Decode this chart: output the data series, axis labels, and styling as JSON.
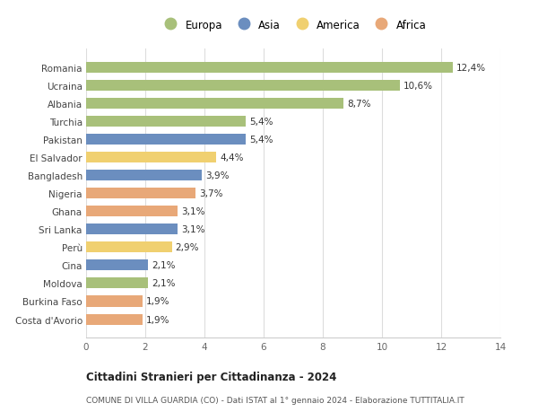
{
  "countries": [
    "Romania",
    "Ucraina",
    "Albania",
    "Turchia",
    "Pakistan",
    "El Salvador",
    "Bangladesh",
    "Nigeria",
    "Ghana",
    "Sri Lanka",
    "Perù",
    "Cina",
    "Moldova",
    "Burkina Faso",
    "Costa d'Avorio"
  ],
  "values": [
    12.4,
    10.6,
    8.7,
    5.4,
    5.4,
    4.4,
    3.9,
    3.7,
    3.1,
    3.1,
    2.9,
    2.1,
    2.1,
    1.9,
    1.9
  ],
  "labels": [
    "12,4%",
    "10,6%",
    "8,7%",
    "5,4%",
    "5,4%",
    "4,4%",
    "3,9%",
    "3,7%",
    "3,1%",
    "3,1%",
    "2,9%",
    "2,1%",
    "2,1%",
    "1,9%",
    "1,9%"
  ],
  "continents": [
    "Europa",
    "Europa",
    "Europa",
    "Europa",
    "Asia",
    "America",
    "Asia",
    "Africa",
    "Africa",
    "Asia",
    "America",
    "Asia",
    "Europa",
    "Africa",
    "Africa"
  ],
  "colors": {
    "Europa": "#a8c07a",
    "Asia": "#6b8ebf",
    "America": "#f0d070",
    "Africa": "#e8a878"
  },
  "legend_order": [
    "Europa",
    "Asia",
    "America",
    "Africa"
  ],
  "xlim": [
    0,
    14
  ],
  "xticks": [
    0,
    2,
    4,
    6,
    8,
    10,
    12,
    14
  ],
  "title": "Cittadini Stranieri per Cittadinanza - 2024",
  "subtitle": "COMUNE DI VILLA GUARDIA (CO) - Dati ISTAT al 1° gennaio 2024 - Elaborazione TUTTITALIA.IT",
  "bg_color": "#ffffff",
  "grid_color": "#dddddd",
  "bar_height": 0.6
}
